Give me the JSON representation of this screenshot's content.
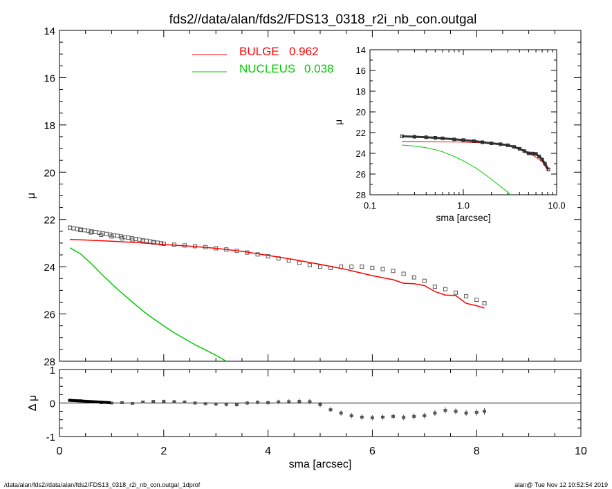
{
  "title": "fds2//data/alan/fds2/FDS13_0318_r2i_nb_con.outgal",
  "footer_left": "/data/alan/fds2//data/alan/fds2/FDS13_0318_r2i_nb_con.outgal_1dprof",
  "footer_right": "alan@  Tue Nov 12 10:52:54 2019",
  "colors": {
    "bulge": "#ff0000",
    "nucleus": "#00cc00",
    "data": "#555555",
    "axis": "#000000"
  },
  "chart_data": [
    {
      "type": "line",
      "panel": "main",
      "xlabel": "",
      "ylabel": "μ",
      "xlim": [
        0,
        10
      ],
      "ylim": [
        28,
        14
      ],
      "y_inverted": true,
      "x_ticks": [],
      "y_ticks": [
        "14",
        "16",
        "18",
        "20",
        "22",
        "24",
        "26",
        "28"
      ],
      "legend": [
        {
          "name": "BULGE",
          "value": "0.962"
        },
        {
          "name": "NUCLEUS",
          "value": "0.038"
        }
      ],
      "series": [
        {
          "name": "data",
          "style": "square-markers",
          "x": [
            0.2,
            0.4,
            0.6,
            0.8,
            1.0,
            1.2,
            1.4,
            1.6,
            1.8,
            2.0,
            2.2,
            2.4,
            2.6,
            2.8,
            3.0,
            3.2,
            3.4,
            3.6,
            3.8,
            4.0,
            4.2,
            4.4,
            4.6,
            4.8,
            5.0,
            5.2,
            5.4,
            5.6,
            5.8,
            6.0,
            6.2,
            6.4,
            6.6,
            6.8,
            7.0,
            7.2,
            7.4,
            7.6,
            7.8,
            8.0,
            8.15
          ],
          "y": [
            22.35,
            22.45,
            22.55,
            22.65,
            22.72,
            22.8,
            22.87,
            22.93,
            22.98,
            23.03,
            23.07,
            23.1,
            23.13,
            23.17,
            23.22,
            23.27,
            23.33,
            23.4,
            23.48,
            23.56,
            23.65,
            23.74,
            23.84,
            23.93,
            24.0,
            24.05,
            24.0,
            24.0,
            24.0,
            24.05,
            24.1,
            24.18,
            24.3,
            24.45,
            24.6,
            24.85,
            24.95,
            25.1,
            25.25,
            25.4,
            25.55
          ]
        },
        {
          "name": "BULGE",
          "style": "line",
          "x": [
            0.2,
            0.5,
            1.0,
            1.5,
            2.0,
            2.5,
            3.0,
            3.5,
            4.0,
            4.5,
            5.0,
            5.5,
            6.0,
            6.4,
            6.6,
            6.8,
            7.0,
            7.2,
            7.4,
            7.6,
            7.8,
            8.0,
            8.15
          ],
          "y": [
            22.85,
            22.87,
            22.92,
            22.98,
            23.06,
            23.13,
            23.22,
            23.35,
            23.52,
            23.7,
            23.9,
            24.12,
            24.38,
            24.55,
            24.7,
            24.72,
            24.8,
            25.05,
            25.2,
            25.22,
            25.55,
            25.65,
            25.75
          ]
        },
        {
          "name": "NUCLEUS",
          "style": "line",
          "x": [
            0.2,
            0.4,
            0.6,
            0.8,
            1.0,
            1.2,
            1.4,
            1.6,
            1.8,
            2.0,
            2.2,
            2.4,
            2.6,
            2.8,
            3.0,
            3.2
          ],
          "y": [
            23.2,
            23.45,
            23.85,
            24.3,
            24.72,
            25.12,
            25.5,
            25.87,
            26.2,
            26.5,
            26.8,
            27.05,
            27.3,
            27.52,
            27.75,
            28.0
          ]
        }
      ]
    },
    {
      "type": "scatter",
      "panel": "residual",
      "xlabel": "sma [arcsec]",
      "ylabel": "Δ μ",
      "xlim": [
        0,
        10
      ],
      "ylim": [
        -1,
        1
      ],
      "x_ticks": [
        "0",
        "2",
        "4",
        "6",
        "8",
        "10"
      ],
      "y_ticks": [
        "1",
        "0",
        "-1"
      ],
      "series": [
        {
          "name": "residual",
          "style": "error-bars",
          "x": [
            0.2,
            0.4,
            0.6,
            0.8,
            1.0,
            1.2,
            1.4,
            1.6,
            1.8,
            2.0,
            2.2,
            2.4,
            2.6,
            2.8,
            3.0,
            3.2,
            3.4,
            3.6,
            3.8,
            4.0,
            4.2,
            4.4,
            4.6,
            4.8,
            5.0,
            5.2,
            5.4,
            5.6,
            5.8,
            6.0,
            6.2,
            6.4,
            6.6,
            6.8,
            7.0,
            7.2,
            7.4,
            7.6,
            7.8,
            8.0,
            8.15
          ],
          "y": [
            0.08,
            0.07,
            0.04,
            0.01,
            0.0,
            0.01,
            -0.01,
            0.03,
            0.05,
            0.05,
            0.04,
            0.03,
            0.0,
            -0.02,
            -0.03,
            -0.04,
            -0.05,
            0.0,
            0.02,
            0.01,
            0.03,
            0.04,
            0.05,
            0.04,
            -0.05,
            -0.2,
            -0.3,
            -0.38,
            -0.42,
            -0.44,
            -0.42,
            -0.4,
            -0.43,
            -0.4,
            -0.38,
            -0.3,
            -0.22,
            -0.25,
            -0.3,
            -0.28,
            -0.25
          ],
          "err": [
            0.03,
            0.03,
            0.03,
            0.03,
            0.03,
            0.03,
            0.04,
            0.04,
            0.04,
            0.05,
            0.05,
            0.05,
            0.05,
            0.05,
            0.06,
            0.06,
            0.06,
            0.06,
            0.06,
            0.07,
            0.07,
            0.07,
            0.08,
            0.08,
            0.08,
            0.08,
            0.08,
            0.08,
            0.08,
            0.08,
            0.08,
            0.08,
            0.08,
            0.09,
            0.09,
            0.09,
            0.09,
            0.09,
            0.09,
            0.1,
            0.1
          ]
        }
      ]
    },
    {
      "type": "line",
      "panel": "inset",
      "xlabel": "sma [arcsec]",
      "ylabel": "μ",
      "x_scale": "log",
      "xlim": [
        0.1,
        10
      ],
      "ylim": [
        28,
        14
      ],
      "y_inverted": true,
      "x_ticks": [
        "0.1",
        "1.0",
        "10.0"
      ],
      "y_ticks": [
        "14",
        "16",
        "18",
        "20",
        "22",
        "24",
        "26",
        "28"
      ],
      "series": [
        {
          "name": "data",
          "style": "markers",
          "x": [
            0.22,
            0.3,
            0.4,
            0.5,
            0.6,
            0.8,
            1.0,
            1.3,
            1.6,
            2.0,
            2.5,
            3.0,
            3.5,
            4.0,
            4.5,
            5.0,
            5.5,
            6.0,
            6.5,
            7.0,
            7.5,
            8.15
          ],
          "y": [
            22.35,
            22.4,
            22.45,
            22.5,
            22.55,
            22.65,
            22.72,
            22.82,
            22.93,
            23.03,
            23.12,
            23.22,
            23.38,
            23.56,
            23.78,
            24.0,
            24.02,
            24.05,
            24.3,
            24.6,
            25.0,
            25.55
          ]
        },
        {
          "name": "BULGE",
          "style": "line",
          "x": [
            0.22,
            0.5,
            1.0,
            1.5,
            2.0,
            3.0,
            4.0,
            5.0,
            6.0,
            7.0,
            8.15
          ],
          "y": [
            22.85,
            22.87,
            22.92,
            22.98,
            23.06,
            23.22,
            23.52,
            23.9,
            24.38,
            24.8,
            25.75
          ]
        },
        {
          "name": "NUCLEUS",
          "style": "line",
          "x": [
            0.22,
            0.3,
            0.4,
            0.5,
            0.6,
            0.8,
            1.0,
            1.3,
            1.6,
            2.0,
            2.5,
            3.0,
            3.2
          ],
          "y": [
            23.2,
            23.3,
            23.45,
            23.65,
            23.85,
            24.3,
            24.72,
            25.3,
            25.85,
            26.5,
            27.2,
            27.75,
            28.0
          ]
        }
      ]
    }
  ]
}
